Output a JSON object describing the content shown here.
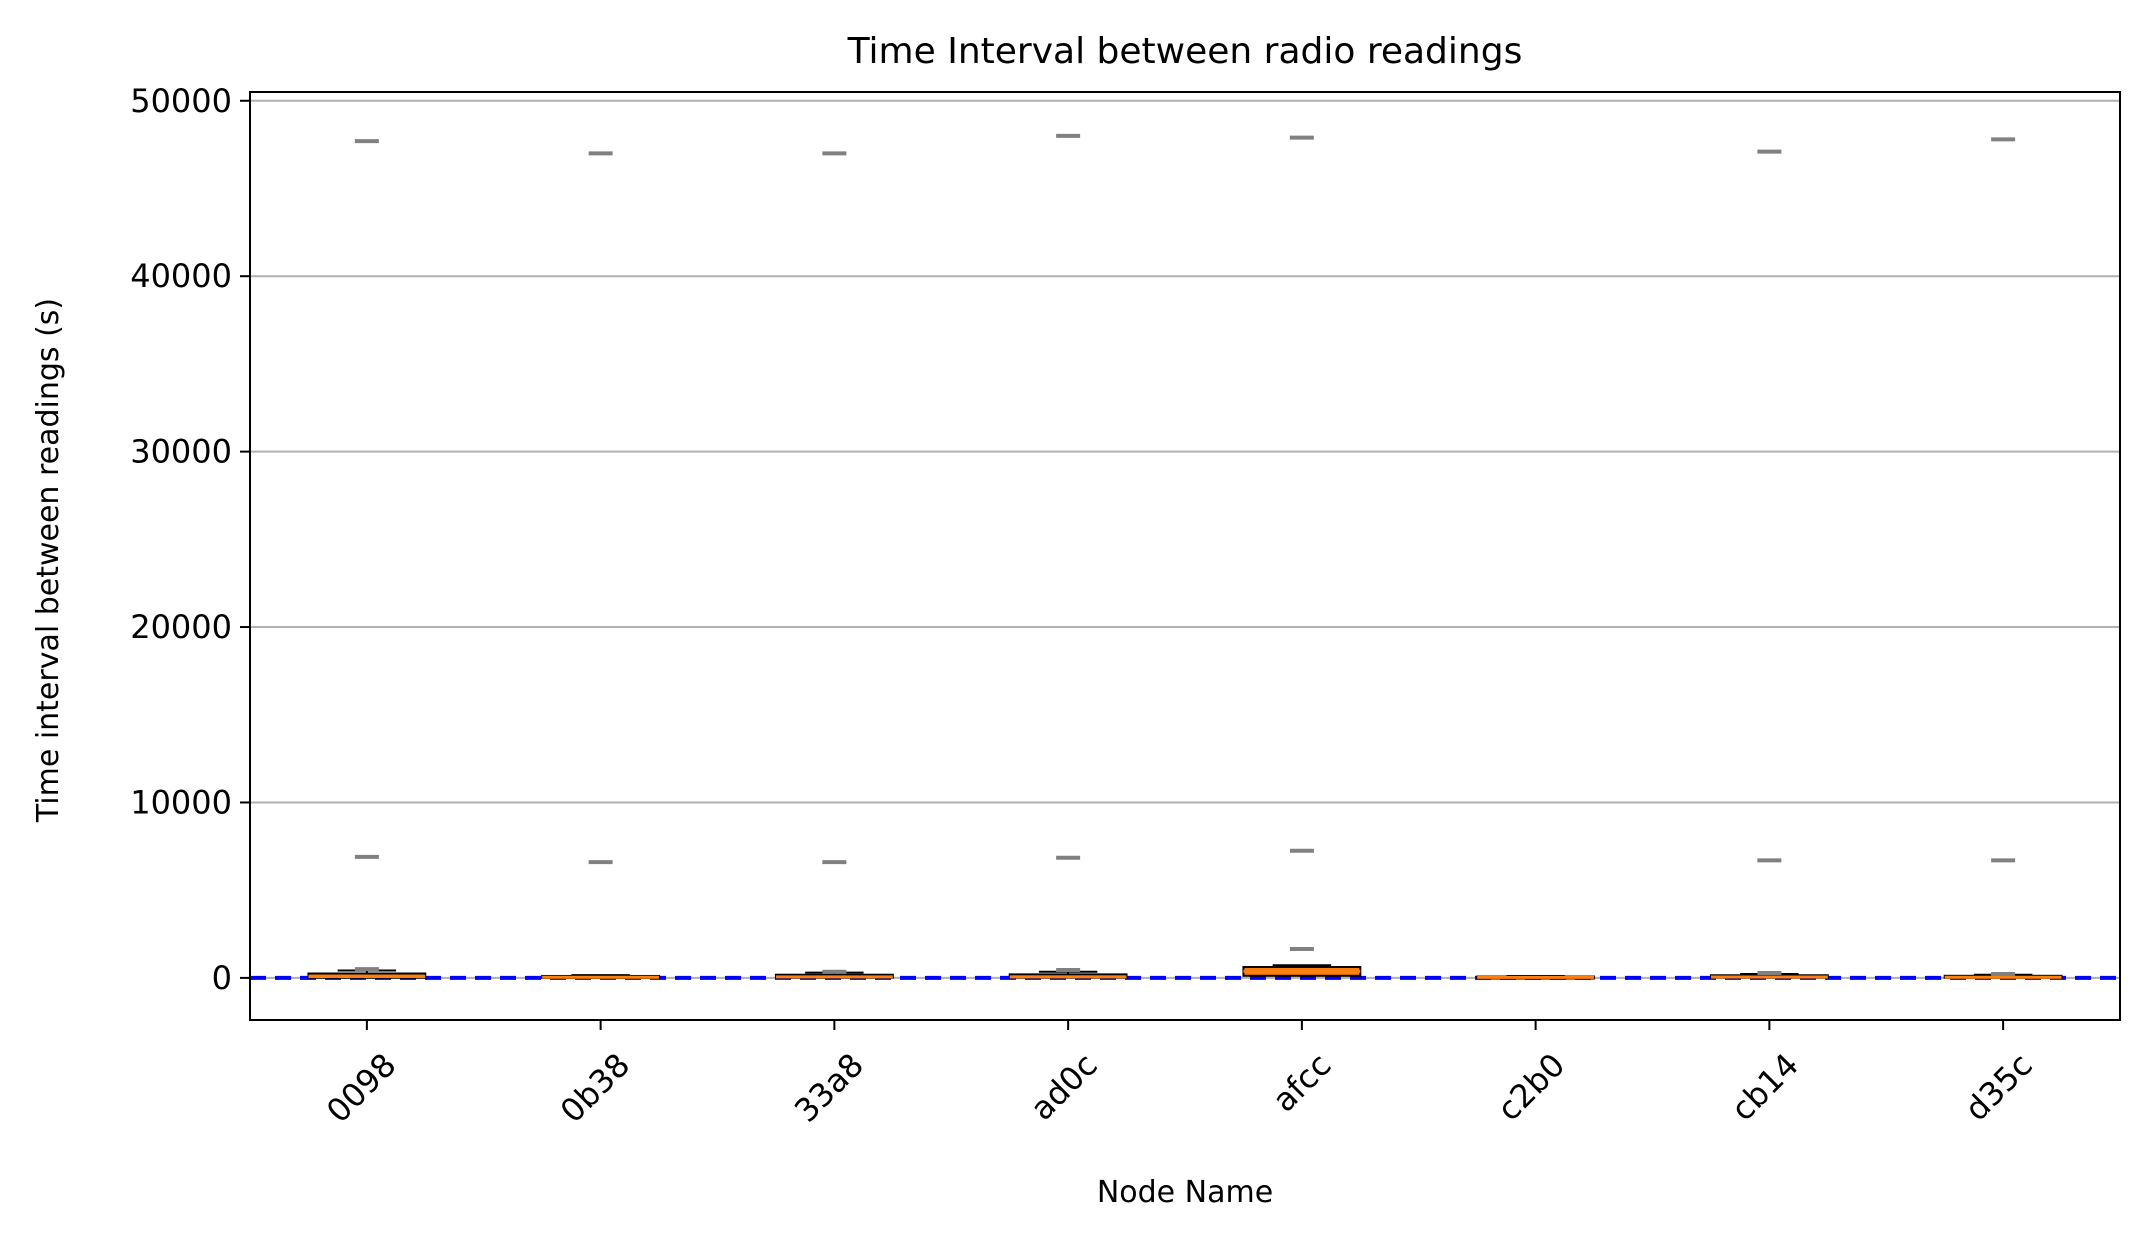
{
  "chart_data": {
    "type": "box",
    "title": "Time Interval between radio readings",
    "xlabel": "Node Name",
    "ylabel": "Time interval between readings (s)",
    "ylim": [
      -2400,
      50500
    ],
    "yticks": [
      0,
      10000,
      20000,
      30000,
      40000,
      50000
    ],
    "grid": "horizontal",
    "reference_line": {
      "y": 0,
      "style": "dashed",
      "color": "#0000ff"
    },
    "colors": {
      "box_fill": "#ff7f0e",
      "median": "#ff7f0e",
      "outlier": "#808080",
      "grid": "#b0b0b0"
    },
    "categories": [
      "0098",
      "0b38",
      "33a8",
      "ad0c",
      "afcc",
      "c2b0",
      "cb14",
      "d35c"
    ],
    "boxes": [
      {
        "q1": 10,
        "median": 80,
        "q3": 250,
        "whisker_low": 0,
        "whisker_high": 420,
        "outliers": [
          500,
          6900,
          47700
        ]
      },
      {
        "q1": 5,
        "median": 40,
        "q3": 110,
        "whisker_low": 0,
        "whisker_high": 160,
        "outliers": [
          6600,
          47000
        ]
      },
      {
        "q1": 10,
        "median": 60,
        "q3": 180,
        "whisker_low": 0,
        "whisker_high": 300,
        "outliers": [
          350,
          6600,
          47000
        ]
      },
      {
        "q1": 10,
        "median": 60,
        "q3": 200,
        "whisker_low": 0,
        "whisker_high": 350,
        "outliers": [
          450,
          6850,
          48000
        ]
      },
      {
        "q1": 120,
        "median": 380,
        "q3": 620,
        "whisker_low": 0,
        "whisker_high": 720,
        "outliers": [
          1650,
          7250,
          47900
        ]
      },
      {
        "q1": 5,
        "median": 30,
        "q3": 80,
        "whisker_low": 0,
        "whisker_high": 110,
        "outliers": []
      },
      {
        "q1": 10,
        "median": 50,
        "q3": 150,
        "whisker_low": 0,
        "whisker_high": 220,
        "outliers": [
          280,
          6700,
          47100
        ]
      },
      {
        "q1": 5,
        "median": 40,
        "q3": 120,
        "whisker_low": 0,
        "whisker_high": 180,
        "outliers": [
          220,
          6700,
          47800
        ]
      }
    ]
  }
}
